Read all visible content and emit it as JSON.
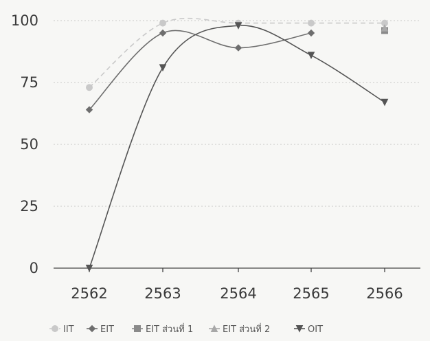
{
  "chart_data": {
    "type": "line",
    "title": "",
    "xlabel": "",
    "ylabel": "",
    "categories": [
      "2562",
      "2563",
      "2564",
      "2565",
      "2566"
    ],
    "ylim": [
      0,
      100
    ],
    "yticks": [
      0,
      25,
      50,
      75,
      100
    ],
    "grid": true,
    "legend_position": "bottom",
    "series": [
      {
        "name": "IIT",
        "values": [
          73,
          99,
          99,
          99,
          99
        ],
        "color": "#c9c9c9",
        "dash": "7 5",
        "marker": "circle"
      },
      {
        "name": "EIT",
        "values": [
          64,
          95,
          89,
          95,
          null
        ],
        "color": "#6e6e6e",
        "dash": "",
        "marker": "diamond"
      },
      {
        "name": "EIT ส่วนที่ 1",
        "values": [
          null,
          null,
          null,
          null,
          96
        ],
        "color": "#8a8a8a",
        "dash": "",
        "marker": "square"
      },
      {
        "name": "EIT ส่วนที่ 2",
        "values": [
          null,
          null,
          null,
          null,
          97
        ],
        "color": "#a8a8a8",
        "dash": "",
        "marker": "triangle"
      },
      {
        "name": "OIT",
        "values": [
          0,
          81,
          98,
          86,
          67
        ],
        "color": "#555555",
        "dash": "",
        "marker": "triangle-down"
      }
    ]
  }
}
